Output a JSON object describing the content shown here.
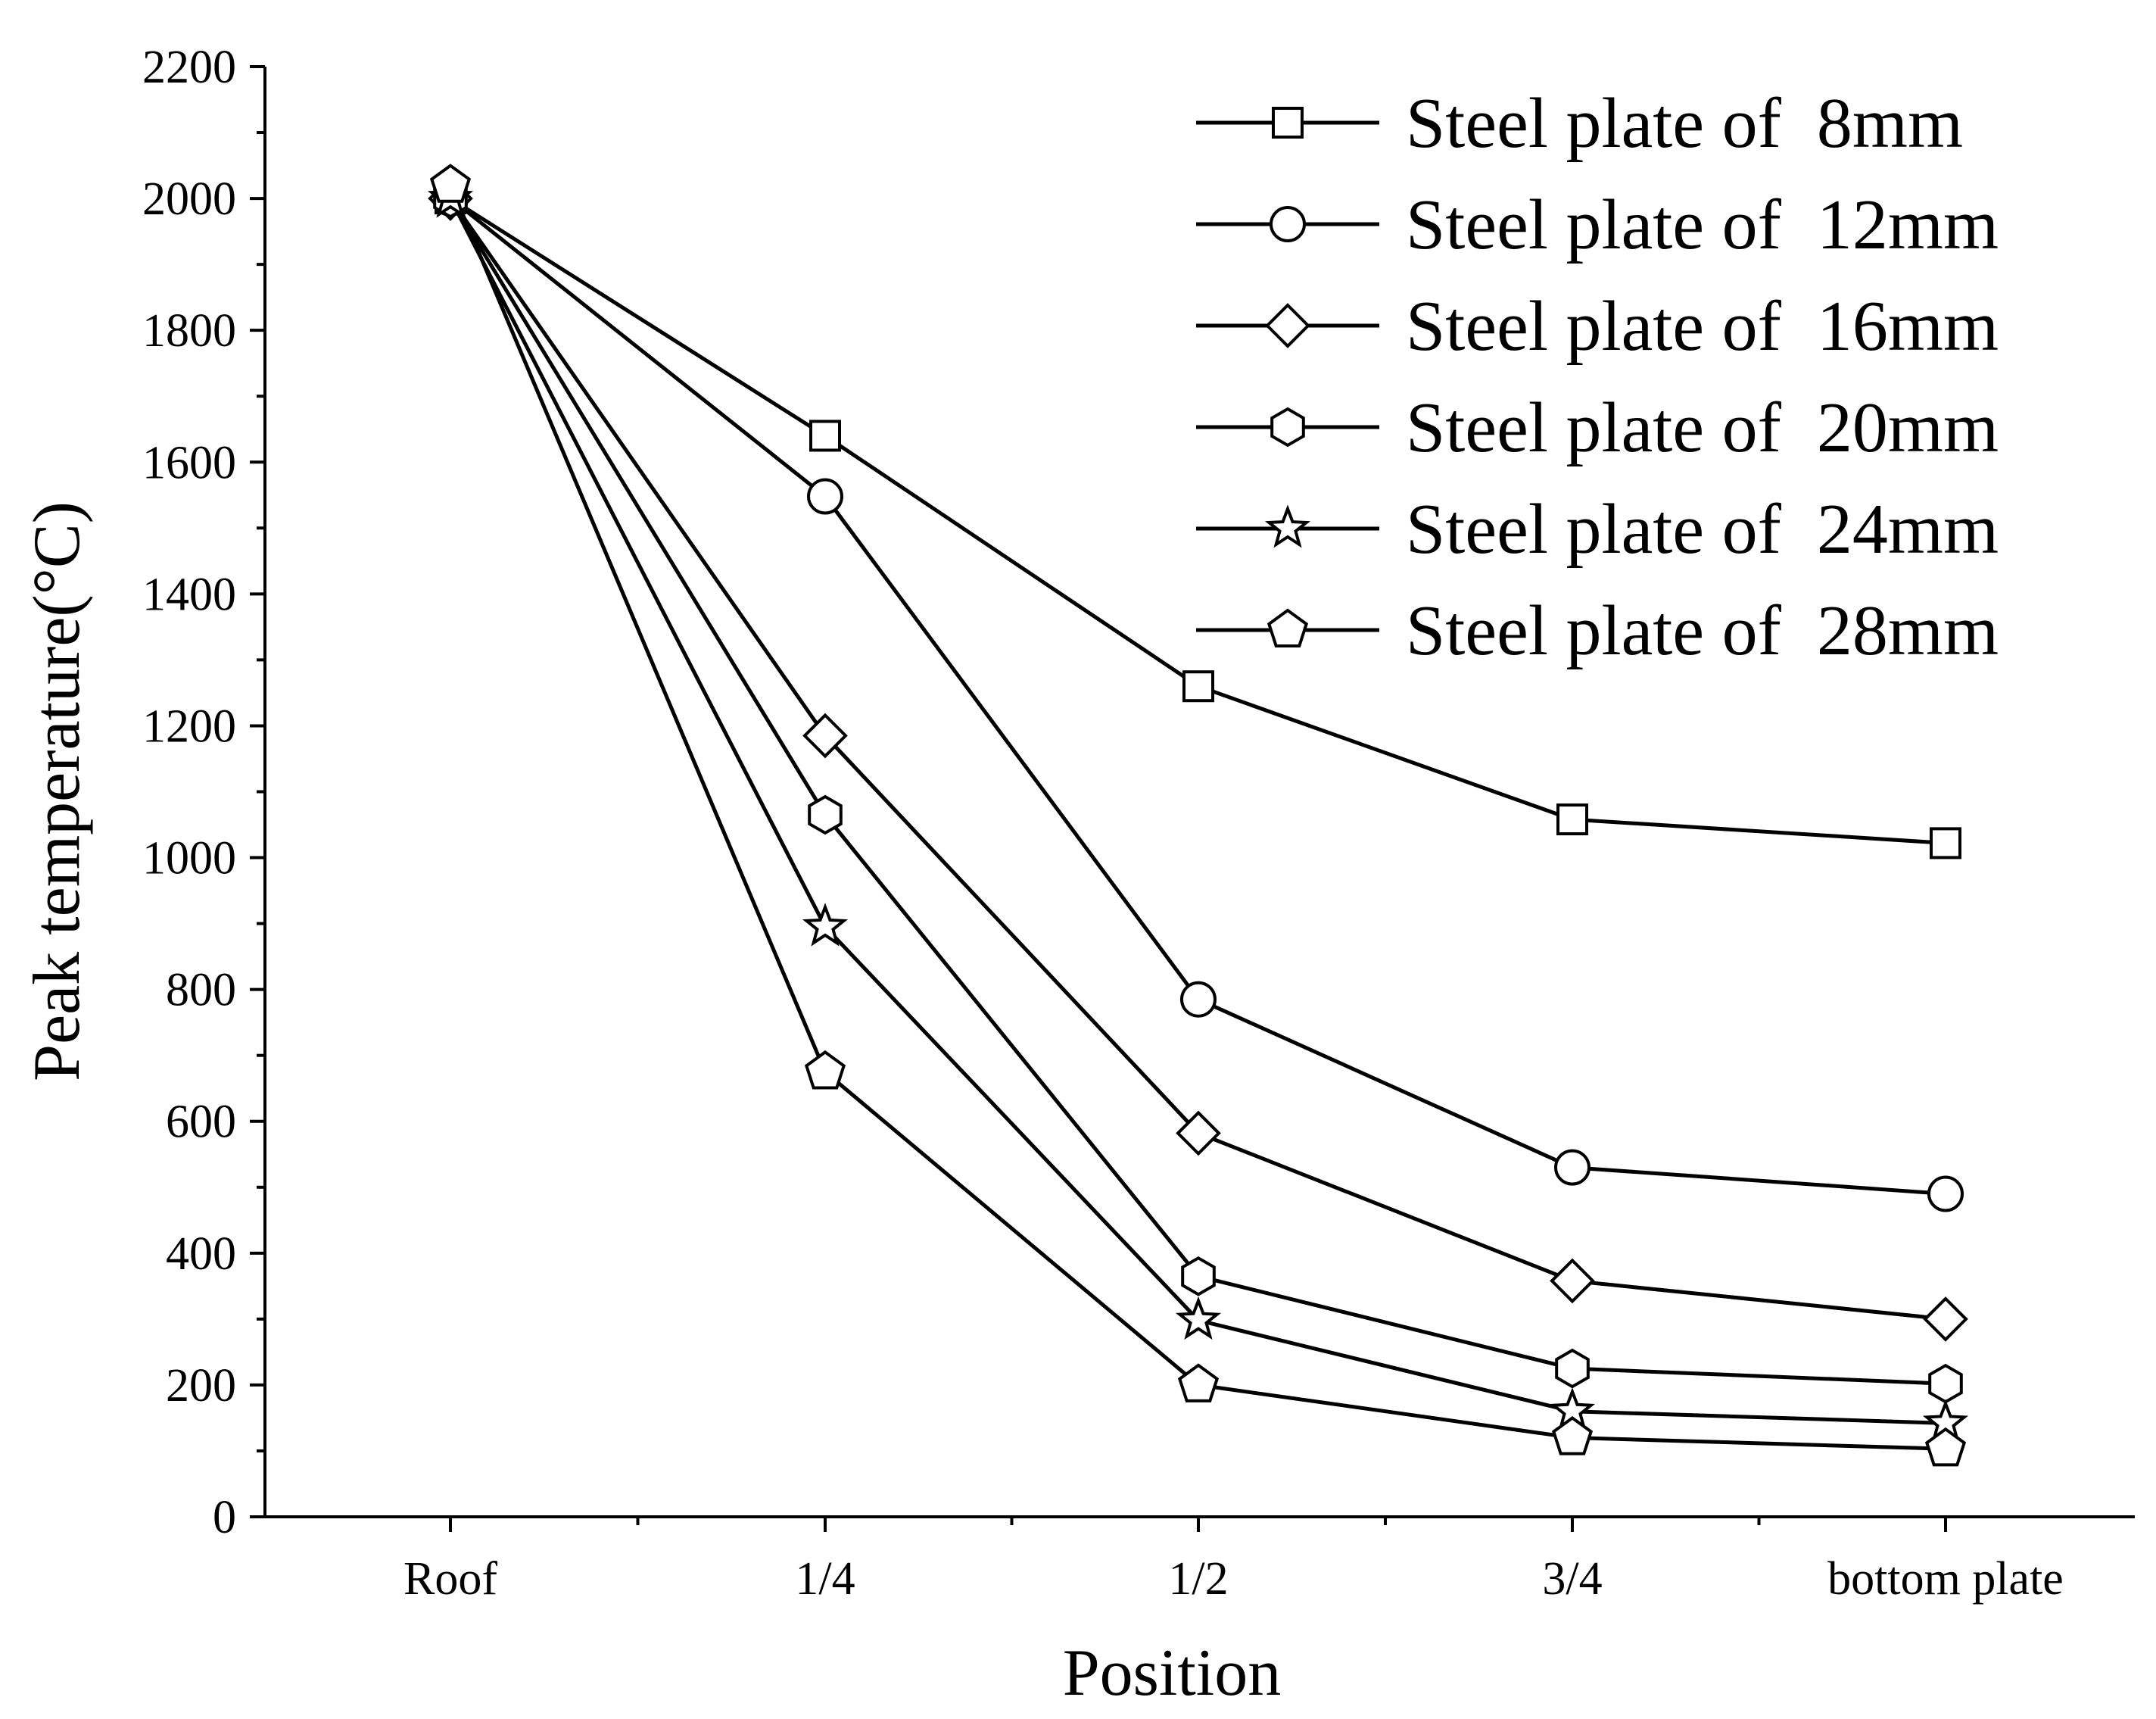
{
  "chart_data": {
    "type": "line",
    "title": "",
    "xlabel": "Position",
    "ylabel": "Peak temperature(°C)",
    "categories": [
      "Roof",
      "1/4",
      "1/2",
      "3/4",
      "bottom plate"
    ],
    "ylim": [
      0,
      2200
    ],
    "yticks": [
      0,
      200,
      400,
      600,
      800,
      1000,
      1200,
      1400,
      1600,
      1800,
      2000,
      2200
    ],
    "grid": false,
    "legend_position": "top-right",
    "series": [
      {
        "name": "Steel plate of  8mm",
        "marker": "square",
        "values": [
          2000,
          1640,
          1260,
          1058,
          1022
        ]
      },
      {
        "name": "Steel plate of  12mm",
        "marker": "circle",
        "values": [
          2000,
          1548,
          785,
          530,
          490
        ]
      },
      {
        "name": "Steel plate of  16mm",
        "marker": "diamond",
        "values": [
          2000,
          1185,
          582,
          358,
          300
        ]
      },
      {
        "name": "Steel plate of  20mm",
        "marker": "hexagon",
        "values": [
          2000,
          1065,
          365,
          225,
          202
        ]
      },
      {
        "name": "Steel plate of  24mm",
        "marker": "star",
        "values": [
          2000,
          895,
          298,
          160,
          142
        ]
      },
      {
        "name": "Steel plate of  28mm",
        "marker": "pentagon",
        "values": [
          2020,
          675,
          200,
          120,
          103
        ]
      }
    ]
  }
}
